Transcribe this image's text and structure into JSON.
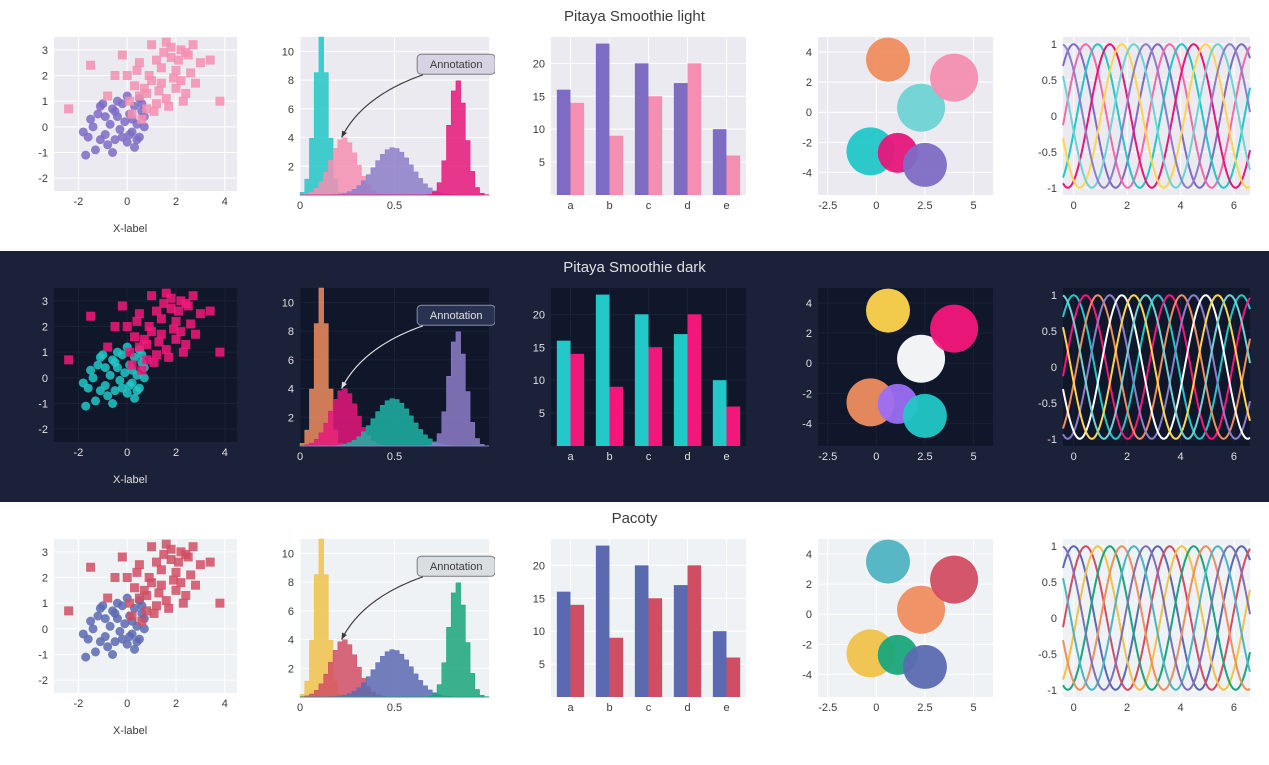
{
  "themes": [
    {
      "id": "light",
      "title": "Pitaya Smoothie light",
      "bg": "#ffffff",
      "plot_bg": "#eceaf1",
      "grid": "#ffffff",
      "text": "#3b3b3b",
      "tick": "#3b3b3b",
      "annotation_box_fill": "#d7d3e3",
      "annotation_box_stroke": "#7b7b7b",
      "arrow": "#3b3b3b",
      "palette": [
        "#7e6bc4",
        "#f06ba8",
        "#22c7c7",
        "#e5177b",
        "#ffd54f",
        "#6fd3d3"
      ],
      "scatter_colors": [
        "#7e6bc4",
        "#f48fb1"
      ],
      "scatter_markers": [
        "circle",
        "square"
      ],
      "hist_colors": [
        "#22c7c7",
        "#f48fb1",
        "#8d7ec9",
        "#e5177b"
      ],
      "bar_colors": [
        "#7e6bc4",
        "#f48fb1"
      ],
      "bubble_colors": [
        "#ef8e5f",
        "#22c7c7",
        "#e5177b",
        "#7e6bc4",
        "#6fd3d3",
        "#f48fb1"
      ],
      "sine_colors": [
        "#7e6bc4",
        "#f06ba8",
        "#22c7c7",
        "#e5177b",
        "#ffd54f",
        "#6fd3d3",
        "#8d7ec9"
      ]
    },
    {
      "id": "dark",
      "title": "Pitaya Smoothie dark",
      "bg": "#1a2138",
      "plot_bg": "#10172b",
      "grid": "#1a2138",
      "text": "#e0e0e0",
      "tick": "#e0e0e0",
      "annotation_box_fill": "#2a3252",
      "annotation_box_stroke": "#8a8fa8",
      "arrow": "#e0e0e0",
      "palette": [
        "#22c7c7",
        "#f4177b",
        "#ef8e5f",
        "#8d7ec9",
        "#ffffff",
        "#ffd54f"
      ],
      "scatter_colors": [
        "#22c7c7",
        "#f4177b"
      ],
      "scatter_markers": [
        "circle",
        "square"
      ],
      "hist_colors": [
        "#ef8e5f",
        "#e5177b",
        "#1fb3a4",
        "#8d7ec9"
      ],
      "bar_colors": [
        "#22c7c7",
        "#f4177b"
      ],
      "bubble_colors": [
        "#ffd54f",
        "#ef8e5f",
        "#9b6ef3",
        "#22c7c7",
        "#ffffff",
        "#f4177b"
      ],
      "sine_colors": [
        "#22c7c7",
        "#f4177b",
        "#ef8e5f",
        "#8d7ec9",
        "#ffffff",
        "#ffd54f",
        "#6fd3d3"
      ]
    },
    {
      "id": "pacoty",
      "title": "Pacoty",
      "bg": "#ffffff",
      "plot_bg": "#eef2f4",
      "grid": "#ffffff",
      "text": "#3b3b3b",
      "tick": "#3b3b3b",
      "annotation_box_fill": "#d9dee3",
      "annotation_box_stroke": "#7b7b7b",
      "arrow": "#3b3b3b",
      "palette": [
        "#5b6ab0",
        "#d14d63",
        "#f0c24a",
        "#1aa57a",
        "#ef8e5f",
        "#4fb3c1"
      ],
      "scatter_colors": [
        "#5b6ab0",
        "#d14d63"
      ],
      "scatter_markers": [
        "circle",
        "square"
      ],
      "hist_colors": [
        "#f0c24a",
        "#d14d63",
        "#5b6ab0",
        "#1aa57a"
      ],
      "bar_colors": [
        "#5b6ab0",
        "#d14d63"
      ],
      "bubble_colors": [
        "#4fb3c1",
        "#f0c24a",
        "#1aa57a",
        "#5b6ab0",
        "#ef8e5f",
        "#d14d63"
      ],
      "sine_colors": [
        "#5b6ab0",
        "#d14d63",
        "#f0c24a",
        "#1aa57a",
        "#ef8e5f",
        "#4fb3c1",
        "#8070b8"
      ]
    }
  ],
  "scatter": {
    "xlabel": "X-label",
    "xlim": [
      -3,
      4.5
    ],
    "ylim": [
      -2.5,
      3.5
    ],
    "xticks": [
      -2,
      0,
      2,
      4
    ],
    "yticks": [
      -2,
      -1,
      0,
      1,
      2,
      3
    ],
    "series": [
      {
        "points": [
          [
            -1.8,
            -0.2
          ],
          [
            -1.5,
            0.3
          ],
          [
            -1.3,
            -0.9
          ],
          [
            -1.1,
            0.8
          ],
          [
            -0.9,
            -0.3
          ],
          [
            -0.7,
            0.1
          ],
          [
            -0.6,
            0.7
          ],
          [
            -0.5,
            -0.5
          ],
          [
            -0.4,
            0.4
          ],
          [
            -0.3,
            -0.1
          ],
          [
            -0.2,
            0.9
          ],
          [
            -0.1,
            0.2
          ],
          [
            0,
            -0.6
          ],
          [
            0.1,
            0.5
          ],
          [
            0.2,
            -0.2
          ],
          [
            0.3,
            0.8
          ],
          [
            0.4,
            0.1
          ],
          [
            0.5,
            -0.4
          ],
          [
            0.6,
            0.6
          ],
          [
            0.7,
            0
          ],
          [
            -1.2,
            0.5
          ],
          [
            -0.8,
            -0.7
          ],
          [
            0.3,
            -0.8
          ],
          [
            -0.4,
            1.0
          ],
          [
            0.5,
            1.1
          ],
          [
            -1.6,
            -0.4
          ],
          [
            -1.0,
            0.9
          ],
          [
            0.0,
            1.2
          ],
          [
            -0.6,
            -1.0
          ],
          [
            0.2,
            0.3
          ],
          [
            -1.4,
            0.0
          ],
          [
            -0.2,
            -0.4
          ],
          [
            0.4,
            -0.5
          ],
          [
            -0.9,
            0.4
          ],
          [
            0.6,
            0.9
          ],
          [
            -1.7,
            -1.1
          ],
          [
            -0.5,
            0.6
          ],
          [
            0.1,
            -0.3
          ],
          [
            -1.1,
            -0.5
          ],
          [
            0.7,
            0.4
          ]
        ]
      },
      {
        "points": [
          [
            0.2,
            0.5
          ],
          [
            0.5,
            1.2
          ],
          [
            0.8,
            0.7
          ],
          [
            1.0,
            1.8
          ],
          [
            1.2,
            0.9
          ],
          [
            1.4,
            2.3
          ],
          [
            1.6,
            1.1
          ],
          [
            1.8,
            2.7
          ],
          [
            2.0,
            1.5
          ],
          [
            2.2,
            3.0
          ],
          [
            2.4,
            1.3
          ],
          [
            2.6,
            2.1
          ],
          [
            2.8,
            1.7
          ],
          [
            3.0,
            2.5
          ],
          [
            0.3,
            1.6
          ],
          [
            0.6,
            0.3
          ],
          [
            0.9,
            2.0
          ],
          [
            1.1,
            0.6
          ],
          [
            1.3,
            1.4
          ],
          [
            1.5,
            2.9
          ],
          [
            1.7,
            0.8
          ],
          [
            1.9,
            1.9
          ],
          [
            2.1,
            2.6
          ],
          [
            2.3,
            1.0
          ],
          [
            2.5,
            2.8
          ],
          [
            0.4,
            2.2
          ],
          [
            0.7,
            1.5
          ],
          [
            1.0,
            3.2
          ],
          [
            1.4,
            1.7
          ],
          [
            1.8,
            3.1
          ],
          [
            2.0,
            2.2
          ],
          [
            2.4,
            2.9
          ],
          [
            0.1,
            1.0
          ],
          [
            0.5,
            2.5
          ],
          [
            0.8,
            1.3
          ],
          [
            3.4,
            2.6
          ],
          [
            2.7,
            3.2
          ],
          [
            1.2,
            2.6
          ],
          [
            1.6,
            3.3
          ],
          [
            2.2,
            1.8
          ],
          [
            -0.5,
            2.0
          ],
          [
            -0.8,
            1.2
          ],
          [
            -1.5,
            2.4
          ],
          [
            -2.4,
            0.7
          ],
          [
            -0.2,
            2.8
          ],
          [
            0.0,
            2.0
          ],
          [
            3.8,
            1.0
          ]
        ]
      }
    ]
  },
  "histogram": {
    "annotation": "Annotation",
    "xlim": [
      0,
      1.0
    ],
    "ylim": [
      0,
      11
    ],
    "xticks": [
      0.0,
      0.5
    ],
    "yticks": [
      2,
      4,
      6,
      8,
      10
    ],
    "arrow_from": [
      0.65,
      9.2
    ],
    "arrow_to": [
      0.22,
      4.0
    ],
    "dists": [
      {
        "mu": 0.1,
        "sigma": 0.035,
        "peak": 11.0
      },
      {
        "mu": 0.22,
        "sigma": 0.07,
        "peak": 4.0
      },
      {
        "mu": 0.48,
        "sigma": 0.1,
        "peak": 3.3
      },
      {
        "mu": 0.82,
        "sigma": 0.045,
        "peak": 8.0
      }
    ]
  },
  "barchart": {
    "categories": [
      "a",
      "b",
      "c",
      "d",
      "e"
    ],
    "series": [
      [
        16,
        23,
        20,
        17,
        10
      ],
      [
        14,
        9,
        15,
        20,
        6
      ]
    ],
    "xlim": [
      -0.5,
      4.5
    ],
    "ylim": [
      0,
      24
    ],
    "yticks": [
      5,
      10,
      15,
      20
    ]
  },
  "bubble": {
    "xlim": [
      -3.0,
      6.0
    ],
    "ylim": [
      -5.5,
      5.0
    ],
    "xticks": [
      -2.5,
      0.0,
      2.5,
      5.0
    ],
    "yticks": [
      -4,
      -2,
      0,
      2,
      4
    ],
    "points": [
      {
        "x": 0.6,
        "y": 3.5,
        "r": 22
      },
      {
        "x": -0.3,
        "y": -2.6,
        "r": 24
      },
      {
        "x": 1.1,
        "y": -2.7,
        "r": 20
      },
      {
        "x": 2.5,
        "y": -3.5,
        "r": 22
      },
      {
        "x": 2.3,
        "y": 0.3,
        "r": 24
      },
      {
        "x": 4.0,
        "y": 2.3,
        "r": 24
      }
    ]
  },
  "sines": {
    "xlim": [
      -0.4,
      6.6
    ],
    "ylim": [
      -1.1,
      1.1
    ],
    "xticks": [
      0,
      2,
      4,
      6
    ],
    "yticks": [
      -1.0,
      -0.5,
      0.0,
      0.5,
      1.0
    ],
    "phases": [
      0,
      0.9,
      1.8,
      2.7,
      3.6,
      4.5,
      5.4
    ]
  }
}
